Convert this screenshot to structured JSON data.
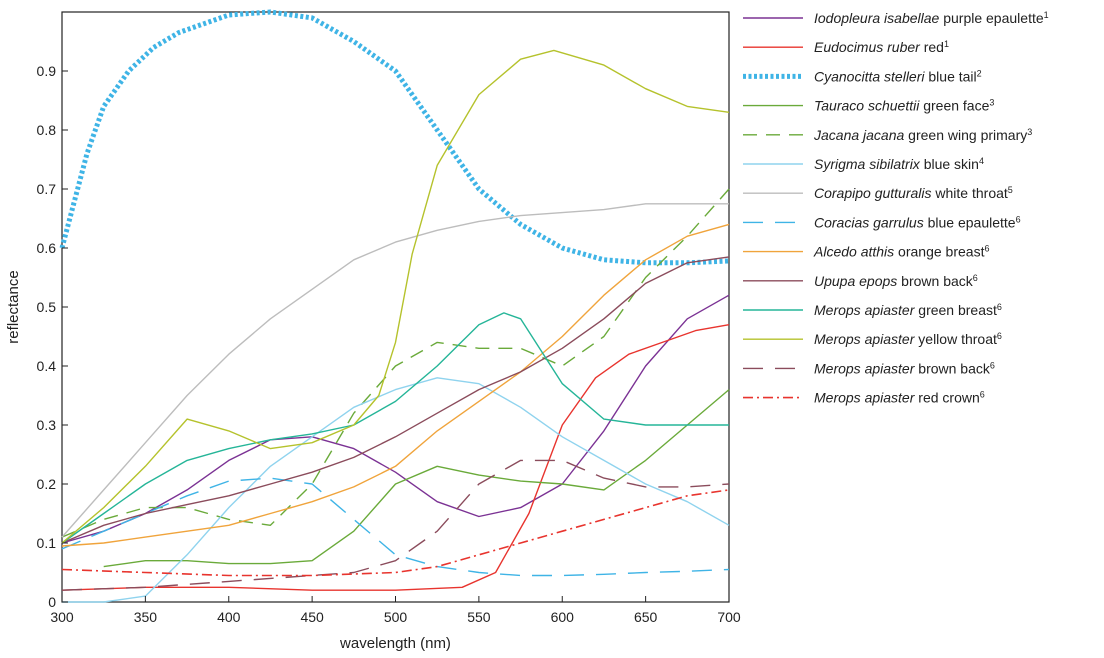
{
  "chart_data": {
    "type": "line",
    "xlabel": "wavelength (nm)",
    "ylabel": "reflectance",
    "xlim": [
      300,
      700
    ],
    "ylim": [
      0,
      1
    ],
    "xticks": [
      300,
      350,
      400,
      450,
      500,
      550,
      600,
      650,
      700
    ],
    "yticks": [
      0,
      0.1,
      0.2,
      0.3,
      0.4,
      0.5,
      0.6,
      0.7,
      0.8,
      0.9
    ],
    "ytick_labels": [
      "0",
      "0.1",
      "0.2",
      "0.3",
      "0.4",
      "0.5",
      "0.6",
      "0.7",
      "0.8",
      "0.9"
    ],
    "grid": false,
    "legend_placement": "outside-right",
    "series": [
      {
        "name": "Iodopleura isabellae purple epaulette",
        "species": "Iodopleura isabellae",
        "descriptor": " purple epaulette",
        "ref": "1",
        "color": "#7b3294",
        "style": "solid",
        "points": [
          [
            300,
            0.1
          ],
          [
            325,
            0.12
          ],
          [
            350,
            0.15
          ],
          [
            375,
            0.19
          ],
          [
            400,
            0.24
          ],
          [
            425,
            0.275
          ],
          [
            450,
            0.28
          ],
          [
            475,
            0.26
          ],
          [
            500,
            0.22
          ],
          [
            525,
            0.17
          ],
          [
            550,
            0.145
          ],
          [
            575,
            0.16
          ],
          [
            600,
            0.2
          ],
          [
            625,
            0.29
          ],
          [
            650,
            0.4
          ],
          [
            675,
            0.48
          ],
          [
            700,
            0.52
          ]
        ]
      },
      {
        "name": "Eudocimus ruber red",
        "species": "Eudocimus ruber",
        "descriptor": " red",
        "ref": "1",
        "color": "#e8342e",
        "style": "solid",
        "points": [
          [
            300,
            0.02
          ],
          [
            350,
            0.025
          ],
          [
            400,
            0.025
          ],
          [
            450,
            0.02
          ],
          [
            500,
            0.02
          ],
          [
            540,
            0.025
          ],
          [
            560,
            0.05
          ],
          [
            580,
            0.15
          ],
          [
            600,
            0.3
          ],
          [
            620,
            0.38
          ],
          [
            640,
            0.42
          ],
          [
            660,
            0.44
          ],
          [
            680,
            0.46
          ],
          [
            700,
            0.47
          ]
        ]
      },
      {
        "name": "Cyanocitta stelleri blue tail",
        "species": "Cyanocitta stelleri",
        "descriptor": " blue tail",
        "ref": "2",
        "color": "#3fb4e6",
        "style": "dotted",
        "points": [
          [
            300,
            0.6
          ],
          [
            315,
            0.76
          ],
          [
            325,
            0.84
          ],
          [
            340,
            0.9
          ],
          [
            355,
            0.94
          ],
          [
            370,
            0.965
          ],
          [
            385,
            0.98
          ],
          [
            400,
            0.995
          ],
          [
            425,
            1.0
          ],
          [
            450,
            0.99
          ],
          [
            475,
            0.95
          ],
          [
            500,
            0.9
          ],
          [
            525,
            0.8
          ],
          [
            550,
            0.7
          ],
          [
            575,
            0.64
          ],
          [
            600,
            0.6
          ],
          [
            625,
            0.58
          ],
          [
            650,
            0.575
          ],
          [
            675,
            0.575
          ],
          [
            700,
            0.578
          ]
        ]
      },
      {
        "name": "Tauraco schuettii green face",
        "species": "Tauraco schuettii",
        "descriptor": " green face",
        "ref": "3",
        "color": "#6aaa3a",
        "style": "solid",
        "points": [
          [
            325,
            0.06
          ],
          [
            350,
            0.07
          ],
          [
            375,
            0.07
          ],
          [
            400,
            0.065
          ],
          [
            425,
            0.065
          ],
          [
            450,
            0.07
          ],
          [
            475,
            0.12
          ],
          [
            500,
            0.2
          ],
          [
            525,
            0.23
          ],
          [
            550,
            0.215
          ],
          [
            575,
            0.205
          ],
          [
            600,
            0.2
          ],
          [
            625,
            0.19
          ],
          [
            650,
            0.24
          ],
          [
            675,
            0.3
          ],
          [
            700,
            0.36
          ]
        ]
      },
      {
        "name": "Jacana jacana green wing primary",
        "species": "Jacana jacana",
        "descriptor": " green wing primary",
        "ref": "3",
        "color": "#6aaa3a",
        "style": "dashed",
        "points": [
          [
            300,
            0.11
          ],
          [
            325,
            0.14
          ],
          [
            350,
            0.16
          ],
          [
            375,
            0.16
          ],
          [
            400,
            0.14
          ],
          [
            425,
            0.13
          ],
          [
            450,
            0.2
          ],
          [
            475,
            0.32
          ],
          [
            500,
            0.4
          ],
          [
            525,
            0.44
          ],
          [
            550,
            0.43
          ],
          [
            575,
            0.43
          ],
          [
            600,
            0.4
          ],
          [
            625,
            0.45
          ],
          [
            650,
            0.55
          ],
          [
            675,
            0.62
          ],
          [
            700,
            0.7
          ]
        ]
      },
      {
        "name": "Syrigma sibilatrix blue skin",
        "species": "Syrigma sibilatrix",
        "descriptor": " blue skin",
        "ref": "4",
        "color": "#8fd3ee",
        "style": "solid",
        "points": [
          [
            300,
            0.0
          ],
          [
            325,
            0.0
          ],
          [
            350,
            0.01
          ],
          [
            375,
            0.08
          ],
          [
            400,
            0.16
          ],
          [
            425,
            0.23
          ],
          [
            450,
            0.28
          ],
          [
            475,
            0.33
          ],
          [
            500,
            0.36
          ],
          [
            525,
            0.38
          ],
          [
            550,
            0.37
          ],
          [
            575,
            0.33
          ],
          [
            600,
            0.28
          ],
          [
            625,
            0.24
          ],
          [
            650,
            0.2
          ],
          [
            675,
            0.17
          ],
          [
            700,
            0.13
          ]
        ]
      },
      {
        "name": "Corapipo gutturalis white throat",
        "species": "Corapipo gutturalis",
        "descriptor": " white throat",
        "ref": "5",
        "color": "#bdbdbd",
        "style": "solid",
        "points": [
          [
            300,
            0.11
          ],
          [
            325,
            0.19
          ],
          [
            350,
            0.27
          ],
          [
            375,
            0.35
          ],
          [
            400,
            0.42
          ],
          [
            425,
            0.48
          ],
          [
            450,
            0.53
          ],
          [
            475,
            0.58
          ],
          [
            500,
            0.61
          ],
          [
            525,
            0.63
          ],
          [
            550,
            0.645
          ],
          [
            575,
            0.655
          ],
          [
            600,
            0.66
          ],
          [
            625,
            0.665
          ],
          [
            650,
            0.675
          ],
          [
            675,
            0.675
          ],
          [
            700,
            0.675
          ]
        ]
      },
      {
        "name": "Coracias garrulus blue epaulette",
        "species": "Coracias garrulus",
        "descriptor": " blue epaulette",
        "ref": "6",
        "color": "#3fb4e6",
        "style": "longdash",
        "points": [
          [
            300,
            0.09
          ],
          [
            325,
            0.12
          ],
          [
            350,
            0.15
          ],
          [
            375,
            0.18
          ],
          [
            400,
            0.205
          ],
          [
            425,
            0.21
          ],
          [
            450,
            0.2
          ],
          [
            475,
            0.14
          ],
          [
            500,
            0.08
          ],
          [
            525,
            0.06
          ],
          [
            550,
            0.05
          ],
          [
            575,
            0.045
          ],
          [
            600,
            0.045
          ],
          [
            625,
            0.047
          ],
          [
            650,
            0.05
          ],
          [
            675,
            0.052
          ],
          [
            700,
            0.055
          ]
        ]
      },
      {
        "name": "Alcedo atthis orange breast",
        "species": "Alcedo atthis",
        "descriptor": " orange breast",
        "ref": "6",
        "color": "#f0a43c",
        "style": "solid",
        "points": [
          [
            300,
            0.095
          ],
          [
            325,
            0.1
          ],
          [
            350,
            0.11
          ],
          [
            375,
            0.12
          ],
          [
            400,
            0.13
          ],
          [
            425,
            0.15
          ],
          [
            450,
            0.17
          ],
          [
            475,
            0.195
          ],
          [
            500,
            0.23
          ],
          [
            525,
            0.29
          ],
          [
            550,
            0.34
          ],
          [
            575,
            0.39
          ],
          [
            600,
            0.45
          ],
          [
            625,
            0.52
          ],
          [
            650,
            0.58
          ],
          [
            675,
            0.62
          ],
          [
            700,
            0.64
          ]
        ]
      },
      {
        "name": "Upupa epops brown back",
        "species": "Upupa epops",
        "descriptor": " brown back",
        "ref": "6",
        "color": "#8b4c5c",
        "style": "solid",
        "points": [
          [
            300,
            0.1
          ],
          [
            325,
            0.13
          ],
          [
            350,
            0.15
          ],
          [
            375,
            0.165
          ],
          [
            400,
            0.18
          ],
          [
            425,
            0.2
          ],
          [
            450,
            0.22
          ],
          [
            475,
            0.245
          ],
          [
            500,
            0.28
          ],
          [
            525,
            0.32
          ],
          [
            550,
            0.36
          ],
          [
            575,
            0.39
          ],
          [
            600,
            0.43
          ],
          [
            625,
            0.48
          ],
          [
            650,
            0.54
          ],
          [
            675,
            0.575
          ],
          [
            700,
            0.585
          ]
        ]
      },
      {
        "name": "Merops apiaster green breast",
        "species": "Merops apiaster",
        "descriptor": " green breast",
        "ref": "6",
        "color": "#25b598",
        "style": "solid",
        "points": [
          [
            300,
            0.1
          ],
          [
            325,
            0.15
          ],
          [
            350,
            0.2
          ],
          [
            375,
            0.24
          ],
          [
            400,
            0.26
          ],
          [
            425,
            0.275
          ],
          [
            450,
            0.285
          ],
          [
            475,
            0.3
          ],
          [
            500,
            0.34
          ],
          [
            525,
            0.4
          ],
          [
            550,
            0.47
          ],
          [
            565,
            0.49
          ],
          [
            575,
            0.48
          ],
          [
            600,
            0.37
          ],
          [
            625,
            0.31
          ],
          [
            650,
            0.3
          ],
          [
            675,
            0.3
          ],
          [
            700,
            0.3
          ]
        ]
      },
      {
        "name": "Merops apiaster yellow throat",
        "species": "Merops apiaster",
        "descriptor": " yellow throat",
        "ref": "6",
        "color": "#b5c22c",
        "style": "solid",
        "points": [
          [
            300,
            0.1
          ],
          [
            325,
            0.16
          ],
          [
            350,
            0.23
          ],
          [
            375,
            0.31
          ],
          [
            400,
            0.29
          ],
          [
            425,
            0.26
          ],
          [
            450,
            0.27
          ],
          [
            475,
            0.3
          ],
          [
            490,
            0.35
          ],
          [
            500,
            0.44
          ],
          [
            510,
            0.59
          ],
          [
            525,
            0.74
          ],
          [
            550,
            0.86
          ],
          [
            575,
            0.92
          ],
          [
            595,
            0.935
          ],
          [
            625,
            0.91
          ],
          [
            650,
            0.87
          ],
          [
            675,
            0.84
          ],
          [
            700,
            0.83
          ]
        ]
      },
      {
        "name": "Merops apiaster brown back",
        "species": "Merops apiaster",
        "descriptor": " brown back",
        "ref": "6",
        "color": "#8b4c5c",
        "style": "longdash",
        "points": [
          [
            300,
            0.02
          ],
          [
            350,
            0.025
          ],
          [
            400,
            0.035
          ],
          [
            450,
            0.045
          ],
          [
            475,
            0.05
          ],
          [
            500,
            0.07
          ],
          [
            525,
            0.12
          ],
          [
            550,
            0.2
          ],
          [
            575,
            0.24
          ],
          [
            600,
            0.24
          ],
          [
            625,
            0.21
          ],
          [
            650,
            0.195
          ],
          [
            675,
            0.195
          ],
          [
            700,
            0.2
          ]
        ]
      },
      {
        "name": "Merops apiaster red crown",
        "species": "Merops apiaster",
        "descriptor": " red crown",
        "ref": "6",
        "color": "#e8342e",
        "style": "dashdot",
        "points": [
          [
            300,
            0.055
          ],
          [
            350,
            0.05
          ],
          [
            400,
            0.045
          ],
          [
            450,
            0.045
          ],
          [
            500,
            0.05
          ],
          [
            525,
            0.06
          ],
          [
            550,
            0.08
          ],
          [
            575,
            0.1
          ],
          [
            600,
            0.12
          ],
          [
            625,
            0.14
          ],
          [
            650,
            0.16
          ],
          [
            675,
            0.18
          ],
          [
            700,
            0.19
          ]
        ]
      }
    ]
  }
}
